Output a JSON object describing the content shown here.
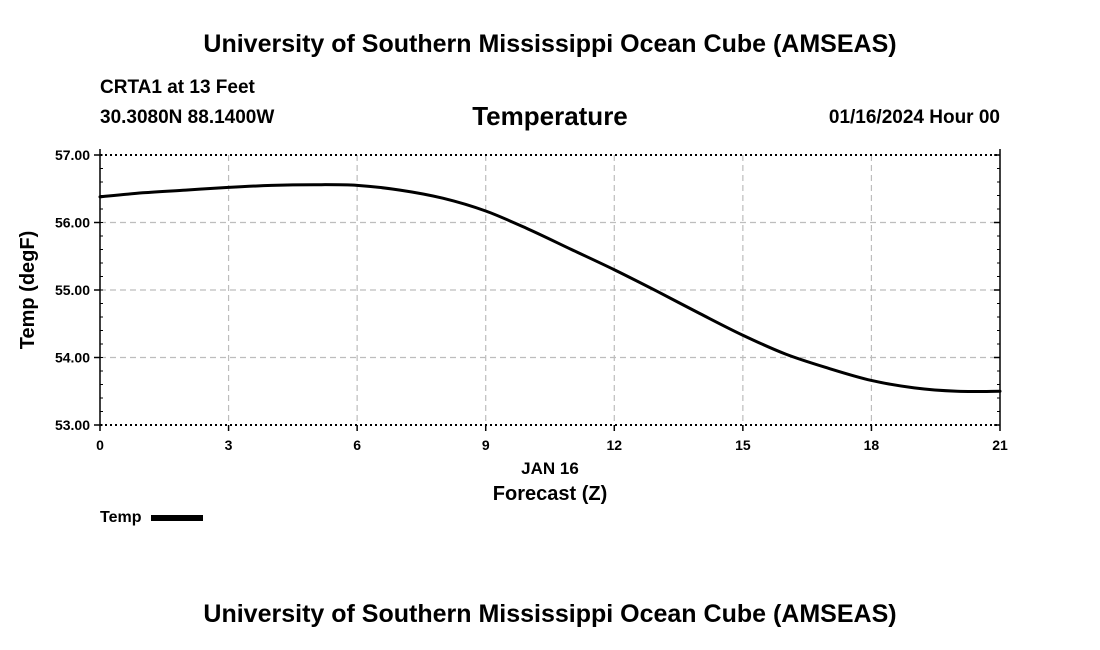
{
  "header": {
    "title": "University of Southern Mississippi Ocean Cube (AMSEAS)",
    "station": "CRTA1 at 13 Feet",
    "coords": "30.3080N  88.1400W",
    "variable": "Temperature",
    "datetime": "01/16/2024 Hour 00"
  },
  "footer": {
    "title": "University of Southern Mississippi Ocean Cube (AMSEAS)"
  },
  "legend": {
    "label": "Temp"
  },
  "colors": {
    "line": "#000000",
    "grid": "#bdbdbd"
  },
  "chart_data": {
    "type": "line",
    "title": "Temperature",
    "xlabel": "Forecast (Z)",
    "xsublabel": "JAN 16",
    "ylabel": "Temp (degF)",
    "xlim": [
      0,
      21
    ],
    "ylim": [
      53,
      57
    ],
    "xticks": [
      0,
      3,
      6,
      9,
      12,
      15,
      18,
      21
    ],
    "yticks": [
      53,
      54,
      55,
      56,
      57
    ],
    "ytick_labels": [
      "53.00",
      "54.00",
      "55.00",
      "56.00",
      "57.00"
    ],
    "grid": true,
    "series": [
      {
        "name": "Temp",
        "x": [
          0,
          1,
          2,
          3,
          4,
          5,
          6,
          7,
          8,
          9,
          10,
          11,
          12,
          13,
          14,
          15,
          16,
          17,
          18,
          19,
          20,
          21
        ],
        "values": [
          56.38,
          56.44,
          56.48,
          56.52,
          56.55,
          56.56,
          56.55,
          56.48,
          56.36,
          56.17,
          55.9,
          55.6,
          55.3,
          54.98,
          54.65,
          54.33,
          54.05,
          53.84,
          53.66,
          53.55,
          53.5,
          53.5
        ]
      }
    ]
  }
}
